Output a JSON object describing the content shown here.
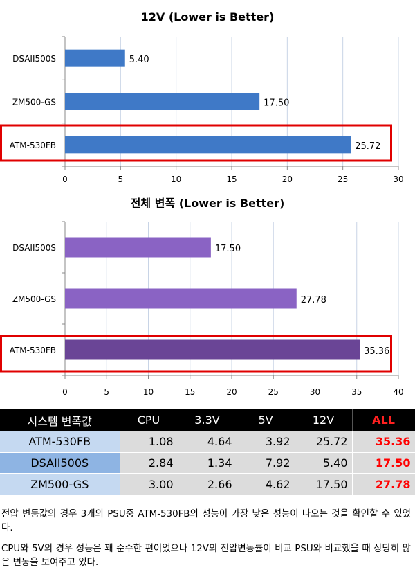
{
  "chart_data": [
    {
      "type": "bar",
      "orientation": "horizontal",
      "title": "12V (Lower is Better)",
      "categories": [
        "DSAII500S",
        "ZM500-GS",
        "ATM-530FB"
      ],
      "values": [
        5.4,
        17.5,
        25.72
      ],
      "value_labels": [
        "5.40",
        "17.50",
        "25.72"
      ],
      "xlim": [
        0,
        30
      ],
      "x_ticks": [
        0,
        5,
        10,
        15,
        20,
        25,
        30
      ],
      "grid": true,
      "bar_color": "#3f79c7",
      "highlight": "ATM-530FB"
    },
    {
      "type": "bar",
      "orientation": "horizontal",
      "title": "전체 변폭 (Lower is Better)",
      "categories": [
        "DSAII500S",
        "ZM500-GS",
        "ATM-530FB"
      ],
      "values": [
        17.5,
        27.78,
        35.36
      ],
      "value_labels": [
        "17.50",
        "27.78",
        "35.36"
      ],
      "xlim": [
        0,
        40
      ],
      "x_ticks": [
        0,
        5,
        10,
        15,
        20,
        25,
        30,
        35,
        40
      ],
      "grid": true,
      "bar_colors": [
        "#8a63c4",
        "#8a63c4",
        "#6a4596"
      ],
      "highlight": "ATM-530FB"
    }
  ],
  "table": {
    "headers": [
      "시스템 변폭값",
      "CPU",
      "3.3V",
      "5V",
      "12V",
      "ALL"
    ],
    "rows": [
      {
        "name": "ATM-530FB",
        "cpu": "1.08",
        "v33": "4.64",
        "v5": "3.92",
        "v12": "25.72",
        "all": "35.36"
      },
      {
        "name": "DSAII500S",
        "cpu": "2.84",
        "v33": "1.34",
        "v5": "7.92",
        "v12": "5.40",
        "all": "17.50"
      },
      {
        "name": "ZM500-GS",
        "cpu": "3.00",
        "v33": "2.66",
        "v5": "4.62",
        "v12": "17.50",
        "all": "27.78"
      }
    ]
  },
  "notes": {
    "paragraph_1": "전압 변동값의 경우 3개의 PSU중 ATM-530FB의 성능이 가장 낮은 성능이 나오는 것을 확인할 수 있었다.",
    "paragraph_2": "CPU와 5V의 경우 성능은 꽤 준수한 편이었으나 12V의 전압변동률이 비교 PSU와 비교했을 때 상당히 많은 변동을 보여주고 있다."
  },
  "colors": {
    "highlight_box": "#e00000",
    "grid": "#c8d4e6",
    "table_header_bg": "#000000",
    "all_value": "#ff0000"
  }
}
